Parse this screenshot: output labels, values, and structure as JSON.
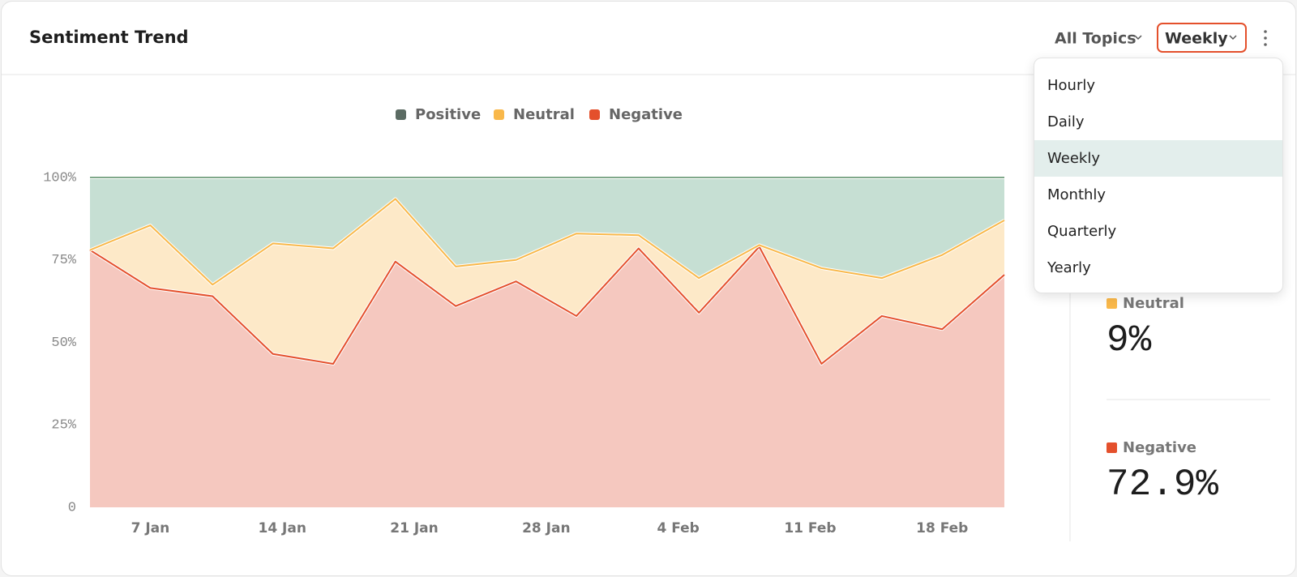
{
  "header": {
    "title": "Sentiment Trend",
    "topic_filter": "All Topics",
    "period_filter": "Weekly"
  },
  "menu": {
    "items": [
      "Hourly",
      "Daily",
      "Weekly",
      "Monthly",
      "Quarterly",
      "Yearly"
    ],
    "selected": 2
  },
  "summary": [
    {
      "label": "Neutral",
      "value": "9%",
      "color": "#f9b84a"
    },
    {
      "label": "Negative",
      "value": "72.9%",
      "color": "#e4502c"
    }
  ],
  "chart_data": {
    "type": "area",
    "stacked": true,
    "legend": "top",
    "grid": false,
    "x": [
      3.8,
      7.0,
      10.3,
      13.5,
      16.7,
      20.0,
      23.2,
      26.4,
      29.6,
      32.9,
      36.1,
      39.3,
      42.6,
      45.8,
      49.0,
      52.3
    ],
    "xlim": [
      3.8,
      52.3
    ],
    "xticks": [
      {
        "value": 7,
        "label": "7 Jan"
      },
      {
        "value": 14,
        "label": "14 Jan"
      },
      {
        "value": 21,
        "label": "21 Jan"
      },
      {
        "value": 28,
        "label": "28 Jan"
      },
      {
        "value": 35,
        "label": "4 Feb"
      },
      {
        "value": 42,
        "label": "11 Feb"
      },
      {
        "value": 49,
        "label": "18 Feb"
      }
    ],
    "ylim": [
      0,
      100
    ],
    "yticks": [
      0,
      {
        "value": 25,
        "label": "25%"
      },
      {
        "value": 50,
        "label": "50%"
      },
      {
        "value": 75,
        "label": "75%"
      },
      {
        "value": 100,
        "label": "100%"
      }
    ],
    "series": [
      {
        "name": "Positive",
        "color": "#5b6b63",
        "line_color": "#7fa88a",
        "fill": "#c6dfd3",
        "values": [
          22,
          14.5,
          32.5,
          20,
          21.5,
          6.5,
          27,
          25,
          17,
          17.5,
          30.5,
          20.5,
          27.5,
          30.5,
          23.5,
          13
        ]
      },
      {
        "name": "Neutral",
        "color": "#f9b84a",
        "line_color": "#f9b84a",
        "fill": "#fde9c8",
        "values": [
          0,
          19,
          3.5,
          33.5,
          35,
          19,
          12,
          6.5,
          25,
          4,
          10.5,
          0.5,
          29,
          11.5,
          22.5,
          16.5
        ]
      },
      {
        "name": "Negative",
        "color": "#e4502c",
        "line_color": "#e4502c",
        "fill": "#f5c8bf",
        "values": [
          78,
          66.5,
          64,
          46.5,
          43.5,
          74.5,
          61,
          68.5,
          58,
          78.5,
          59,
          79,
          43.5,
          58,
          54,
          70.5
        ]
      }
    ]
  }
}
